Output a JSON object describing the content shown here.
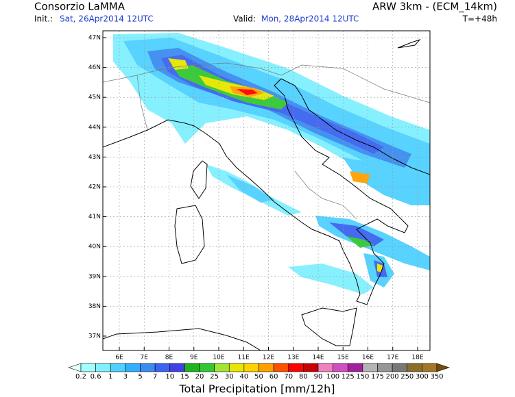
{
  "header": {
    "title": "Consorzio LaMMA",
    "model": "ARW 3km - (ECM_14km)",
    "init_label": "Init.:",
    "init_time": "Sat, 26Apr2014 12UTC",
    "valid_label": "Valid:",
    "valid_time": "Mon, 28Apr2014 12UTC",
    "lead_time": "T=+48h"
  },
  "map": {
    "lat_labels": [
      "47N",
      "46N",
      "45N",
      "44N",
      "43N",
      "42N",
      "41N",
      "40N",
      "39N",
      "38N",
      "37N"
    ],
    "lon_labels": [
      "6E",
      "7E",
      "8E",
      "9E",
      "10E",
      "11E",
      "12E",
      "13E",
      "14E",
      "15E",
      "16E",
      "17E",
      "18E"
    ]
  },
  "legend": {
    "title": "Total Precipitation [mm/12h]",
    "labels": [
      "0.2",
      "0.6",
      "1",
      "3",
      "5",
      "7",
      "10",
      "15",
      "20",
      "25",
      "30",
      "40",
      "50",
      "60",
      "70",
      "80",
      "90",
      "100",
      "125",
      "150",
      "175",
      "200",
      "250",
      "300",
      "350"
    ],
    "colors": [
      "#e6ffff",
      "#a0ffff",
      "#80f0ff",
      "#50d0ff",
      "#30b0ff",
      "#3c8cf0",
      "#3c64f0",
      "#4040e6",
      "#1eb41e",
      "#32c832",
      "#a0e632",
      "#e6e600",
      "#ffd200",
      "#ffa000",
      "#ff5000",
      "#ff0000",
      "#c80000",
      "#f080c0",
      "#d050c0",
      "#a020a0",
      "#b4b4b4",
      "#969696",
      "#787878",
      "#8c6e28",
      "#a07828",
      "#784b0a"
    ]
  }
}
